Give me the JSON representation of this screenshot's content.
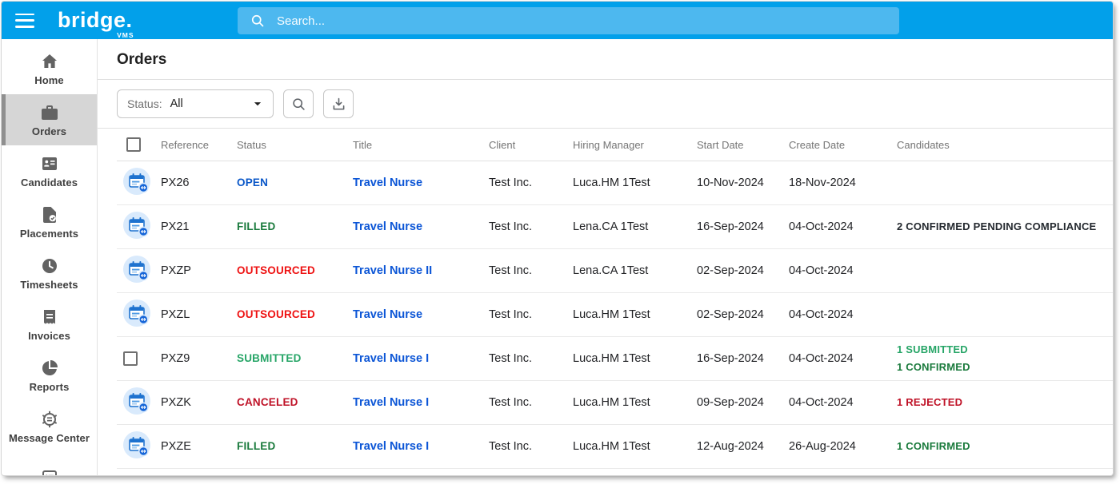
{
  "topbar": {
    "brand": "bridge.",
    "brand_sub": "VMS",
    "search_placeholder": "Search..."
  },
  "sidebar": {
    "items": [
      {
        "label": "Home",
        "icon": "home",
        "active": false
      },
      {
        "label": "Orders",
        "icon": "orders",
        "active": true
      },
      {
        "label": "Candidates",
        "icon": "candidates",
        "active": false
      },
      {
        "label": "Placements",
        "icon": "placements",
        "active": false
      },
      {
        "label": "Timesheets",
        "icon": "timesheets",
        "active": false
      },
      {
        "label": "Invoices",
        "icon": "invoices",
        "active": false
      },
      {
        "label": "Reports",
        "icon": "reports",
        "active": false
      },
      {
        "label": "Message Center",
        "icon": "message-center",
        "active": false
      },
      {
        "label": "",
        "icon": "list",
        "active": false
      }
    ]
  },
  "page": {
    "title": "Orders"
  },
  "filters": {
    "status_label": "Status:",
    "status_value": "All"
  },
  "table": {
    "columns": [
      "Reference",
      "Status",
      "Title",
      "Client",
      "Hiring Manager",
      "Start Date",
      "Create Date",
      "Candidates"
    ],
    "rows": [
      {
        "leading": "icon",
        "reference": "PX26",
        "status": "OPEN",
        "status_color": "status_open",
        "title": "Travel Nurse",
        "client": "Test Inc.",
        "hiring_manager": "Luca.HM 1Test",
        "start_date": "10-Nov-2024",
        "create_date": "18-Nov-2024",
        "candidates": []
      },
      {
        "leading": "icon",
        "reference": "PX21",
        "status": "FILLED",
        "status_color": "status_filled",
        "title": "Travel Nurse",
        "client": "Test Inc.",
        "hiring_manager": "Lena.CA 1Test",
        "start_date": "16-Sep-2024",
        "create_date": "04-Oct-2024",
        "candidates": [
          {
            "text": "2 CONFIRMED PENDING COMPLIANCE",
            "color": "candidate_dark"
          }
        ]
      },
      {
        "leading": "icon",
        "reference": "PXZP",
        "status": "OUTSOURCED",
        "status_color": "status_outsourced",
        "title": "Travel Nurse II",
        "client": "Test Inc.",
        "hiring_manager": "Lena.CA 1Test",
        "start_date": "02-Sep-2024",
        "create_date": "04-Oct-2024",
        "candidates": []
      },
      {
        "leading": "icon",
        "reference": "PXZL",
        "status": "OUTSOURCED",
        "status_color": "status_outsourced",
        "title": "Travel Nurse",
        "client": "Test Inc.",
        "hiring_manager": "Luca.HM 1Test",
        "start_date": "02-Sep-2024",
        "create_date": "04-Oct-2024",
        "candidates": []
      },
      {
        "leading": "checkbox",
        "reference": "PXZ9",
        "status": "SUBMITTED",
        "status_color": "status_submitted",
        "title": "Travel Nurse I",
        "client": "Test Inc.",
        "hiring_manager": "Luca.HM 1Test",
        "start_date": "16-Sep-2024",
        "create_date": "04-Oct-2024",
        "candidates": [
          {
            "text": "1 SUBMITTED",
            "color": "status_submitted"
          },
          {
            "text": "1 CONFIRMED",
            "color": "status_filled"
          }
        ]
      },
      {
        "leading": "icon",
        "reference": "PXZK",
        "status": "CANCELED",
        "status_color": "status_canceled",
        "title": "Travel Nurse I",
        "client": "Test Inc.",
        "hiring_manager": "Luca.HM 1Test",
        "start_date": "09-Sep-2024",
        "create_date": "04-Oct-2024",
        "candidates": [
          {
            "text": "1 REJECTED",
            "color": "status_canceled"
          }
        ]
      },
      {
        "leading": "icon",
        "reference": "PXZE",
        "status": "FILLED",
        "status_color": "status_filled",
        "title": "Travel Nurse I",
        "client": "Test Inc.",
        "hiring_manager": "Luca.HM 1Test",
        "start_date": "12-Aug-2024",
        "create_date": "26-Aug-2024",
        "candidates": [
          {
            "text": "1 CONFIRMED",
            "color": "status_filled"
          }
        ]
      }
    ]
  },
  "colors": {
    "topbar": "#02a0ea",
    "search_field": "#4db8ef",
    "link_blue": "#0b55d6",
    "status_open": "#0a57c8",
    "status_filled": "#1a7a3c",
    "status_outsourced": "#ee1111",
    "status_submitted": "#27a567",
    "status_canceled": "#bf1227",
    "candidate_dark": "#24292f"
  }
}
